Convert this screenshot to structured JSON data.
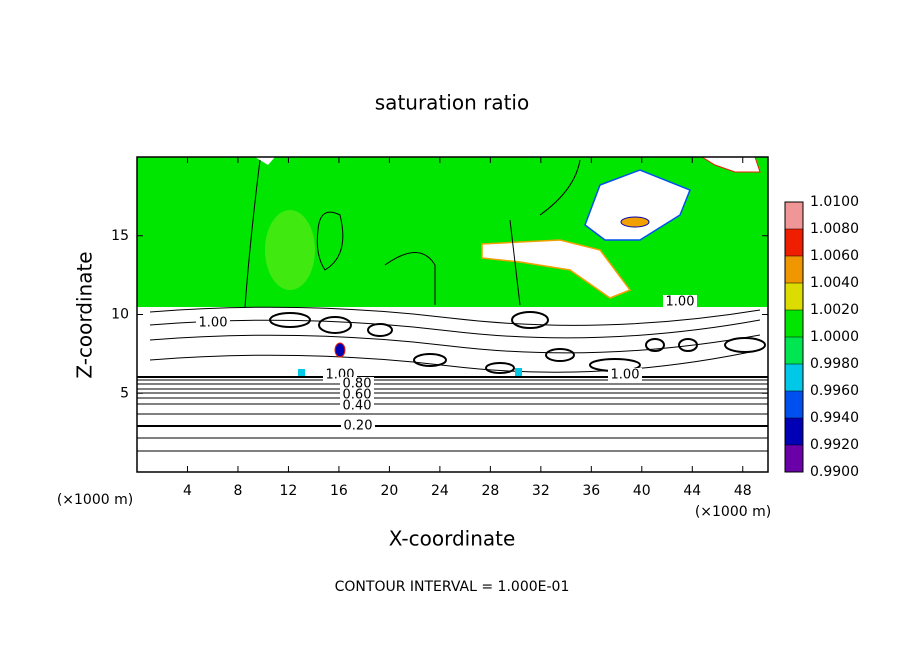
{
  "chart_data": {
    "type": "contour",
    "title": "saturation ratio",
    "x_label": "X-coordinate",
    "y_label": "Z-coordinate",
    "x_unit_left": "(×1000 m)",
    "x_unit_right": "(×1000 m)",
    "footer": "CONTOUR INTERVAL = 1.000E-01",
    "xlim": [
      0,
      50
    ],
    "xticks": [
      4,
      8,
      12,
      16,
      20,
      24,
      28,
      32,
      36,
      40,
      44,
      48
    ],
    "ylim": [
      0,
      20
    ],
    "yticks": [
      5,
      10,
      15
    ],
    "contour_labels": [
      {
        "value": 1,
        "label": "1.00"
      },
      {
        "value": 1,
        "label": "1.00"
      },
      {
        "value": 1,
        "label": "1.00"
      },
      {
        "value": 1,
        "label": "1.00"
      },
      {
        "value": 0.8,
        "label": "0.80"
      },
      {
        "value": 0.6,
        "label": "0.60"
      },
      {
        "value": 0.4,
        "label": "0.40"
      },
      {
        "value": 0.2,
        "label": "0.20"
      }
    ],
    "colorbar": {
      "lim": [
        0.99,
        1.01
      ],
      "ticks": [
        {
          "value": 0.99,
          "label": "0.9900"
        },
        {
          "value": 0.992,
          "label": "0.9920"
        },
        {
          "value": 0.994,
          "label": "0.9940"
        },
        {
          "value": 0.996,
          "label": "0.9960"
        },
        {
          "value": 0.998,
          "label": "0.9980"
        },
        {
          "value": 1.0,
          "label": "1.0000"
        },
        {
          "value": 1.002,
          "label": "1.0020"
        },
        {
          "value": 1.004,
          "label": "1.0040"
        },
        {
          "value": 1.006,
          "label": "1.0060"
        },
        {
          "value": 1.008,
          "label": "1.0080"
        },
        {
          "value": 1.01,
          "label": "1.0100"
        }
      ],
      "colors": [
        "#6a00a8",
        "#0000b4",
        "#0050f0",
        "#00c8e6",
        "#00e650",
        "#00e600",
        "#dcdc00",
        "#f09600",
        "#f01e00",
        "#f09696"
      ]
    }
  }
}
